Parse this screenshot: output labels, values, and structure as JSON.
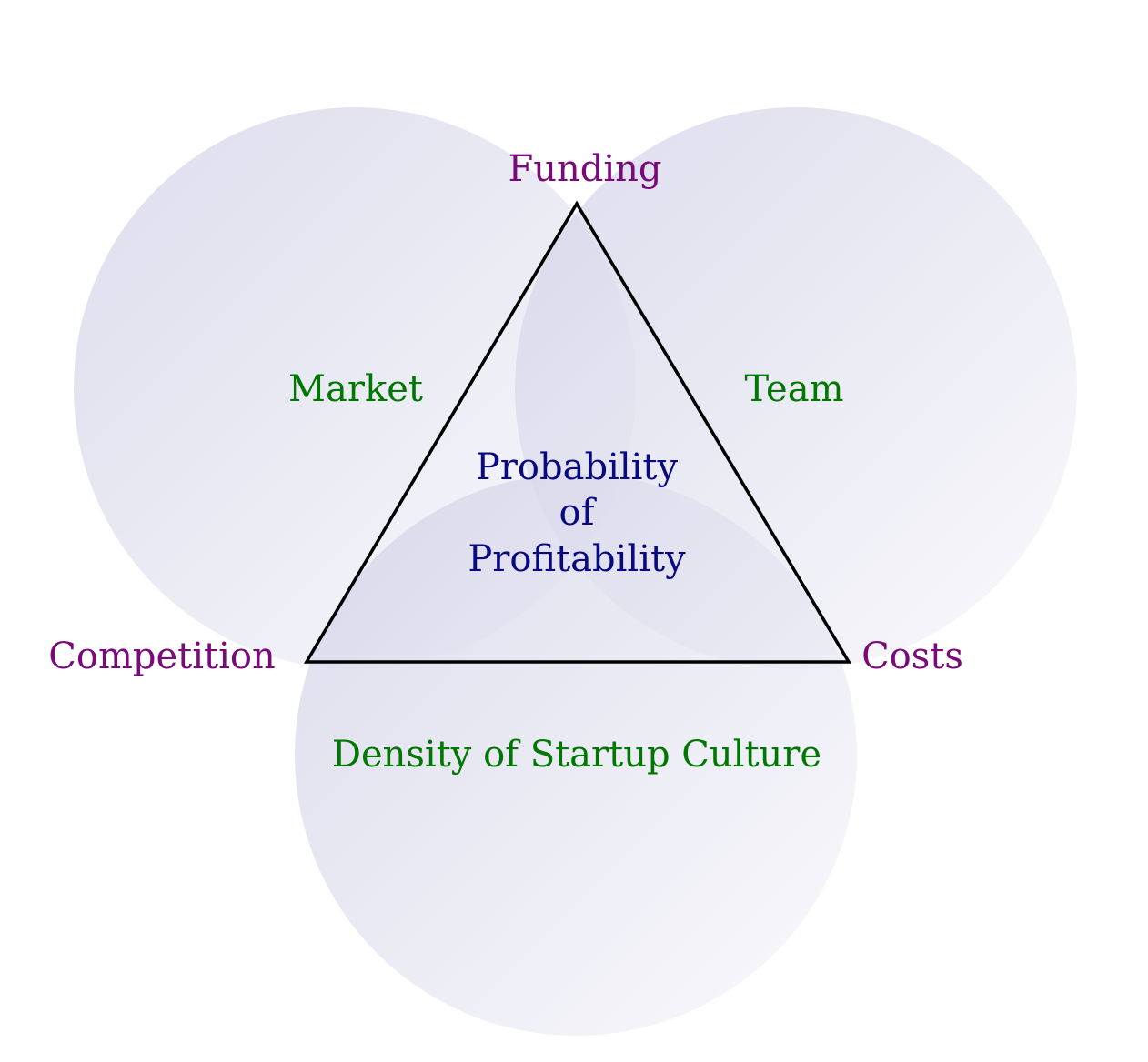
{
  "colors": {
    "circle_fill_start": "#cfcfe6",
    "circle_fill_end": "#f7f7fb",
    "triangle_stroke": "#000000",
    "circle_label": "#007700",
    "vertex_label": "#7a0a7a",
    "center_label": "#0a0a80"
  },
  "circles": {
    "market": "Market",
    "team": "Team",
    "density": "Density of Startup Culture"
  },
  "vertices": {
    "top": "Funding",
    "left": "Competition",
    "right": "Costs"
  },
  "center": {
    "line1": "Probability",
    "line2": "of",
    "line3": "Profitability"
  }
}
